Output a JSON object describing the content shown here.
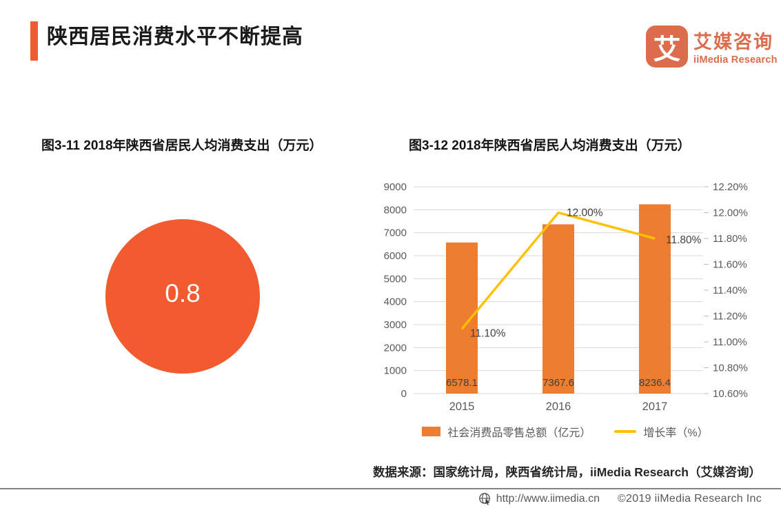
{
  "colors": {
    "accent": "#F25B2F",
    "logo": "#DB6C4C",
    "bar": "#ED7D31",
    "line": "#FFC000",
    "axis_text": "#595959",
    "data_label_text": "#404040",
    "gridline": "#D9D9D9"
  },
  "header": {
    "title": "陕西居民消费水平不断提高",
    "logo": {
      "glyph": "艾",
      "name_cn": "艾媒咨询",
      "name_en": "iiMedia Research"
    }
  },
  "chart_data": [
    {
      "type": "pie",
      "subtype": "single-value-circle",
      "title": "图3-11 2018年陕西省居民人均消费支出（万元）",
      "values": [
        0.8
      ],
      "labels": [
        "0.8"
      ],
      "display_value": "0.8",
      "color": "#F25B2F",
      "note": "solid orange circle with the value 0.8 centered in white"
    },
    {
      "type": "bar",
      "subtype": "bar-line-combo",
      "title": "图3-12 2018年陕西省居民人均消费支出（万元）",
      "categories": [
        "2015",
        "2016",
        "2017"
      ],
      "series": [
        {
          "name": "社会消费品零售总额（亿元）",
          "chart": "bar",
          "axis": "left",
          "color": "#ED7D31",
          "values": [
            6578.1,
            7367.6,
            8236.4
          ],
          "data_labels": [
            "6578.1",
            "7367.6",
            "8236.4"
          ]
        },
        {
          "name": "增长率（%）",
          "chart": "line",
          "axis": "right",
          "color": "#FFC000",
          "values": [
            11.1,
            12.0,
            11.8
          ],
          "data_labels": [
            "11.10%",
            "12.00%",
            "11.80%"
          ]
        }
      ],
      "left_axis": {
        "min": 0,
        "max": 9000,
        "step": 1000,
        "tick_labels": [
          "0",
          "1000",
          "2000",
          "3000",
          "4000",
          "5000",
          "6000",
          "7000",
          "8000",
          "9000"
        ]
      },
      "right_axis": {
        "min": 10.6,
        "max": 12.2,
        "step": 0.2,
        "tick_labels": [
          "10.60%",
          "10.80%",
          "11.00%",
          "11.20%",
          "11.40%",
          "11.60%",
          "11.80%",
          "12.00%",
          "12.20%"
        ]
      },
      "grid": true,
      "legend_position": "bottom"
    }
  ],
  "source_note": "数据来源：国家统计局，陕西省统计局，iiMedia Research（艾媒咨询）",
  "footer": {
    "url": "http://www.iimedia.cn",
    "copyright": "©2019  iiMedia Research Inc"
  }
}
